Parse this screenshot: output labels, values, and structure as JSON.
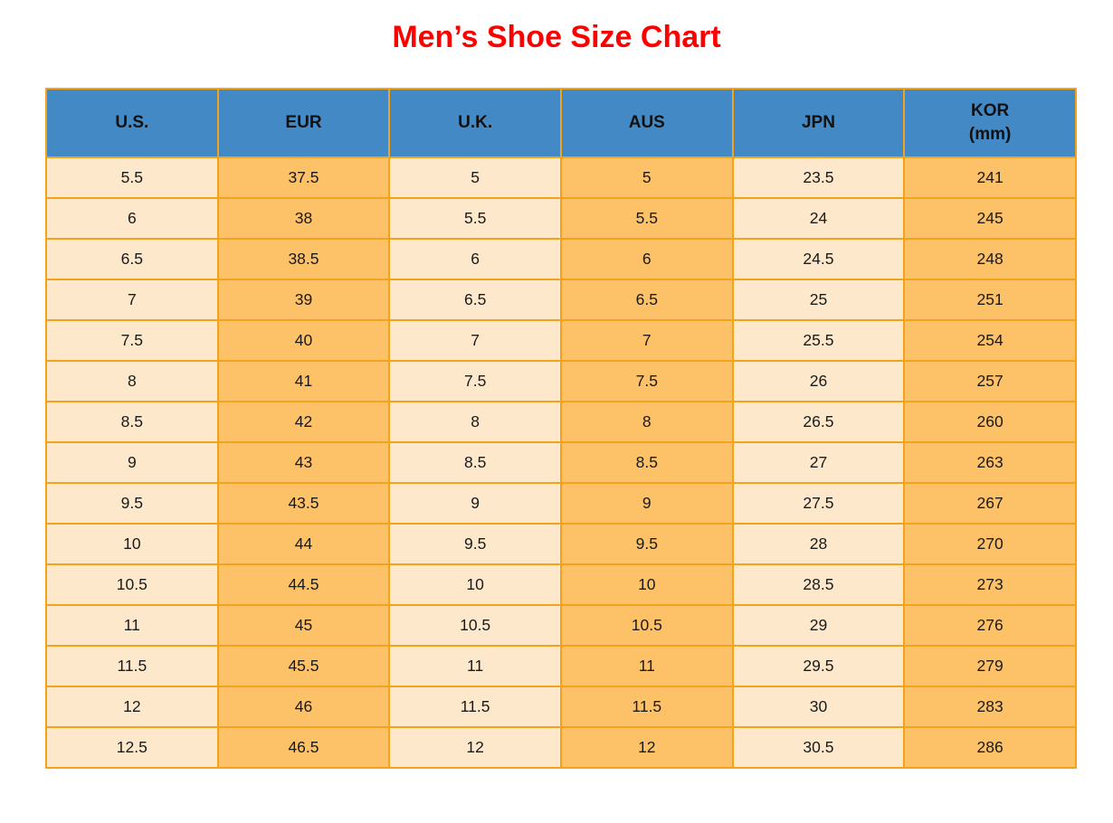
{
  "title": "Men’s Shoe Size Chart",
  "colors": {
    "title_color": "#FF0000",
    "header_bg": "#4389C6",
    "column_light_bg": "#FDE8CC",
    "column_dark_bg": "#FDC168",
    "grid_border": "#F2A21B",
    "cell_text": "#1A1A1A",
    "header_text": "#111111"
  },
  "chart_data": {
    "type": "table",
    "title": "Men’s Shoe Size Chart",
    "columns": [
      "U.S.",
      "EUR",
      "U.K.",
      "AUS",
      "JPN",
      "KOR\n(mm)"
    ],
    "rows": [
      [
        "5.5",
        "37.5",
        "5",
        "5",
        "23.5",
        "241"
      ],
      [
        "6",
        "38",
        "5.5",
        "5.5",
        "24",
        "245"
      ],
      [
        "6.5",
        "38.5",
        "6",
        "6",
        "24.5",
        "248"
      ],
      [
        "7",
        "39",
        "6.5",
        "6.5",
        "25",
        "251"
      ],
      [
        "7.5",
        "40",
        "7",
        "7",
        "25.5",
        "254"
      ],
      [
        "8",
        "41",
        "7.5",
        "7.5",
        "26",
        "257"
      ],
      [
        "8.5",
        "42",
        "8",
        "8",
        "26.5",
        "260"
      ],
      [
        "9",
        "43",
        "8.5",
        "8.5",
        "27",
        "263"
      ],
      [
        "9.5",
        "43.5",
        "9",
        "9",
        "27.5",
        "267"
      ],
      [
        "10",
        "44",
        "9.5",
        "9.5",
        "28",
        "270"
      ],
      [
        "10.5",
        "44.5",
        "10",
        "10",
        "28.5",
        "273"
      ],
      [
        "11",
        "45",
        "10.5",
        "10.5",
        "29",
        "276"
      ],
      [
        "11.5",
        "45.5",
        "11",
        "11",
        "29.5",
        "279"
      ],
      [
        "12",
        "46",
        "11.5",
        "11.5",
        "30",
        "283"
      ],
      [
        "12.5",
        "46.5",
        "12",
        "12",
        "30.5",
        "286"
      ]
    ],
    "layout": {
      "header_position": "top",
      "column_bg_pattern": [
        "light",
        "dark",
        "light",
        "dark",
        "light",
        "dark"
      ],
      "grid": true
    }
  }
}
